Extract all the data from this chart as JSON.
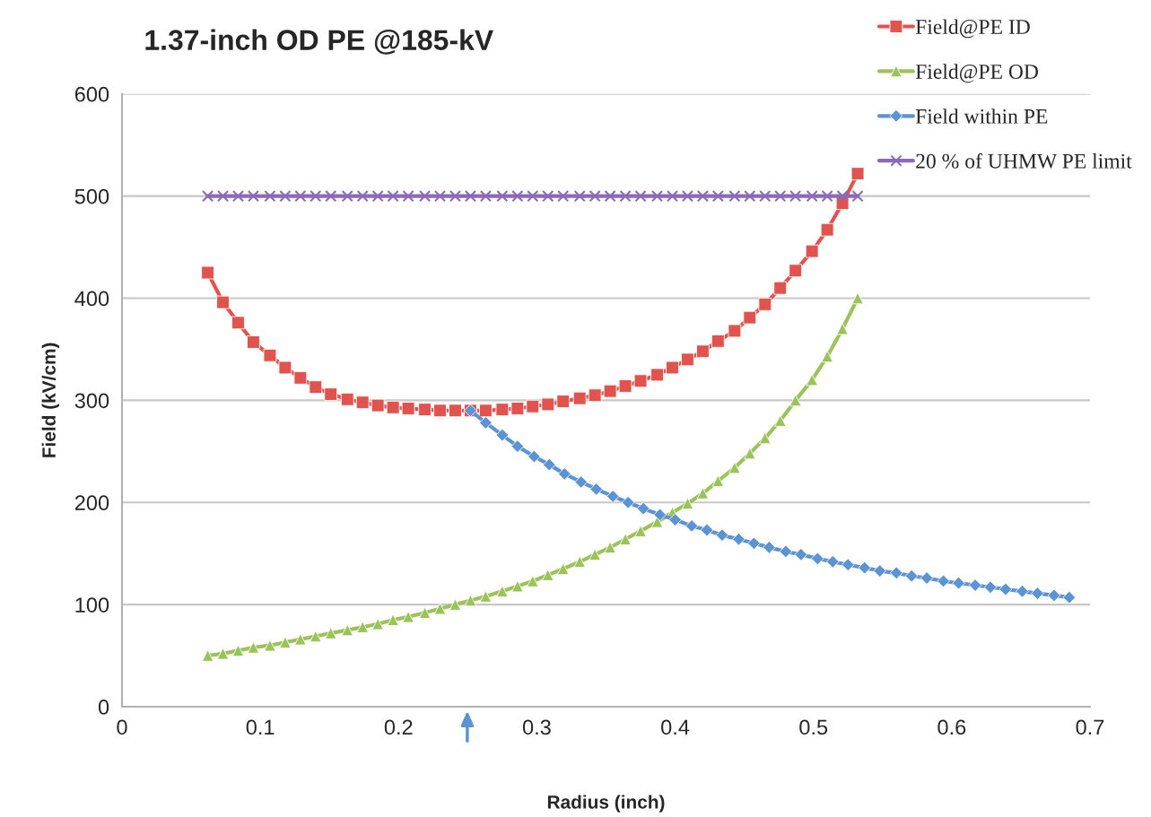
{
  "chart_data": {
    "type": "line",
    "title": "1.37-inch OD PE @185-kV",
    "xlabel": "Radius (inch)",
    "ylabel": "Field (kV/cm)",
    "xlim": [
      0,
      0.7
    ],
    "xticks": [
      0,
      0.1,
      0.2,
      0.3,
      0.4,
      0.5,
      0.6,
      0.7
    ],
    "ylim": [
      0,
      600
    ],
    "yticks": [
      0,
      100,
      200,
      300,
      400,
      500,
      600
    ],
    "grid": "y",
    "legend": "top right",
    "series": [
      {
        "name": "Field@PE ID",
        "color": "#e0534e",
        "marker": "square",
        "x": [
          0.062,
          0.073,
          0.084,
          0.095,
          0.107,
          0.118,
          0.129,
          0.14,
          0.151,
          0.163,
          0.174,
          0.185,
          0.196,
          0.207,
          0.219,
          0.23,
          0.241,
          0.252,
          0.263,
          0.275,
          0.286,
          0.297,
          0.308,
          0.319,
          0.331,
          0.342,
          0.353,
          0.364,
          0.375,
          0.387,
          0.398,
          0.409,
          0.42,
          0.431,
          0.443,
          0.454,
          0.465,
          0.476,
          0.487,
          0.499,
          0.51,
          0.521,
          0.532
        ],
        "values": [
          425,
          396,
          376,
          357,
          344,
          332,
          322,
          313,
          306,
          301,
          298,
          295,
          293,
          292,
          291,
          290,
          290,
          290,
          290,
          291,
          292,
          294,
          296,
          299,
          302,
          305,
          309,
          314,
          319,
          325,
          332,
          340,
          348,
          358,
          368,
          381,
          394,
          410,
          427,
          446,
          467,
          493,
          522
        ]
      },
      {
        "name": "Field@PE OD",
        "color": "#9bc35a",
        "marker": "triangle",
        "x": [
          0.062,
          0.073,
          0.084,
          0.095,
          0.107,
          0.118,
          0.129,
          0.14,
          0.151,
          0.163,
          0.174,
          0.185,
          0.196,
          0.207,
          0.219,
          0.23,
          0.241,
          0.252,
          0.263,
          0.275,
          0.286,
          0.297,
          0.308,
          0.319,
          0.331,
          0.342,
          0.353,
          0.364,
          0.375,
          0.387,
          0.398,
          0.409,
          0.42,
          0.431,
          0.443,
          0.454,
          0.465,
          0.476,
          0.487,
          0.499,
          0.51,
          0.521,
          0.532
        ],
        "values": [
          50,
          52,
          55,
          58,
          60,
          63,
          66,
          69,
          72,
          75,
          78,
          81,
          85,
          88,
          92,
          96,
          100,
          104,
          108,
          113,
          118,
          123,
          129,
          135,
          142,
          149,
          156,
          164,
          172,
          181,
          190,
          199,
          209,
          221,
          234,
          248,
          263,
          280,
          300,
          320,
          343,
          370,
          400
        ]
      },
      {
        "name": "Field within PE",
        "color": "#5b93d3",
        "marker": "diamond",
        "x": [
          0.252,
          0.263,
          0.275,
          0.286,
          0.298,
          0.309,
          0.32,
          0.332,
          0.343,
          0.355,
          0.366,
          0.377,
          0.389,
          0.4,
          0.412,
          0.423,
          0.434,
          0.446,
          0.457,
          0.468,
          0.48,
          0.491,
          0.503,
          0.514,
          0.525,
          0.537,
          0.548,
          0.56,
          0.571,
          0.582,
          0.594,
          0.605,
          0.617,
          0.628,
          0.639,
          0.651,
          0.662,
          0.674,
          0.685
        ],
        "values": [
          290,
          278,
          266,
          255,
          245,
          237,
          228,
          220,
          213,
          206,
          200,
          194,
          188,
          183,
          177,
          173,
          168,
          164,
          160,
          156,
          152,
          149,
          145,
          142,
          139,
          136,
          133,
          131,
          128,
          126,
          123,
          121,
          119,
          117,
          115,
          113,
          111,
          109,
          107
        ]
      },
      {
        "name": "20 % of UHMW PE limit",
        "color": "#8a6bb5",
        "marker": "cross",
        "x": [
          0.062,
          0.073,
          0.084,
          0.095,
          0.107,
          0.118,
          0.129,
          0.14,
          0.151,
          0.163,
          0.174,
          0.185,
          0.196,
          0.207,
          0.219,
          0.23,
          0.241,
          0.252,
          0.263,
          0.275,
          0.286,
          0.297,
          0.308,
          0.319,
          0.331,
          0.342,
          0.353,
          0.364,
          0.375,
          0.387,
          0.398,
          0.409,
          0.42,
          0.431,
          0.443,
          0.454,
          0.465,
          0.476,
          0.487,
          0.499,
          0.51,
          0.521,
          0.532
        ],
        "values": [
          500,
          500,
          500,
          500,
          500,
          500,
          500,
          500,
          500,
          500,
          500,
          500,
          500,
          500,
          500,
          500,
          500,
          500,
          500,
          500,
          500,
          500,
          500,
          500,
          500,
          500,
          500,
          500,
          500,
          500,
          500,
          500,
          500,
          500,
          500,
          500,
          500,
          500,
          500,
          500,
          500,
          500,
          500
        ]
      }
    ]
  }
}
